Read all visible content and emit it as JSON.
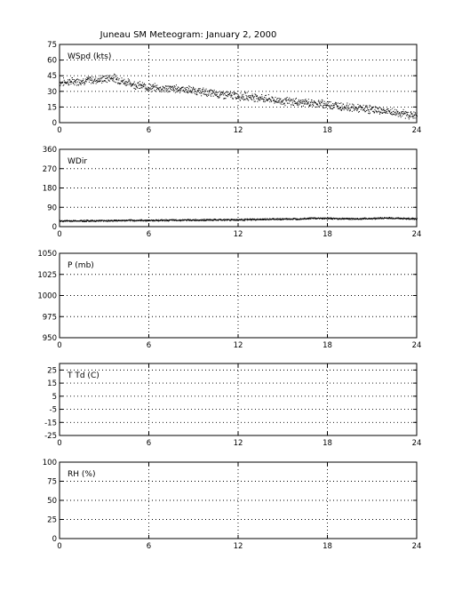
{
  "title": "Juneau SM Meteogram:    January  2, 2000",
  "chart_data": [
    {
      "type": "scatter",
      "label": "WSpd (kts)",
      "x_ticks": [
        "0",
        "6",
        "12",
        "18",
        "24"
      ],
      "xlim": [
        0,
        24
      ],
      "y_ticks": [
        "0",
        "15",
        "30",
        "45",
        "60",
        "75"
      ],
      "ylim": [
        0,
        75
      ],
      "grid": true,
      "series": [
        {
          "x": [
            0,
            1,
            2,
            3,
            3.5,
            4,
            5,
            6,
            7,
            8,
            9,
            10,
            11,
            12,
            13,
            14,
            15,
            16,
            17,
            18,
            19,
            20,
            21,
            22,
            23,
            24
          ],
          "y": [
            39,
            40,
            41,
            42,
            44,
            41,
            37,
            34,
            33,
            33,
            31,
            29,
            27,
            26,
            25,
            23,
            21,
            20,
            19,
            18,
            16,
            14,
            13,
            11,
            9,
            7
          ],
          "spread": 6
        }
      ]
    },
    {
      "type": "scatter",
      "label": "WDir",
      "x_ticks": [
        "0",
        "6",
        "12",
        "18",
        "24"
      ],
      "xlim": [
        0,
        24
      ],
      "y_ticks": [
        "0",
        "90",
        "180",
        "270",
        "360"
      ],
      "ylim": [
        0,
        360
      ],
      "grid": true,
      "series": [
        {
          "x": [
            0,
            2,
            4,
            6,
            8,
            10,
            12,
            14,
            16,
            17,
            18,
            20,
            22,
            23,
            24
          ],
          "y": [
            28,
            29,
            30,
            31,
            32,
            33,
            34,
            36,
            38,
            41,
            40,
            38,
            42,
            40,
            38
          ],
          "spread": 6
        }
      ]
    },
    {
      "type": "scatter",
      "label": "P (mb)",
      "x_ticks": [
        "0",
        "6",
        "12",
        "18",
        "24"
      ],
      "xlim": [
        0,
        24
      ],
      "y_ticks": [
        "950",
        "975",
        "1000",
        "1025",
        "1050"
      ],
      "ylim": [
        950,
        1050
      ],
      "grid": true,
      "series": []
    },
    {
      "type": "scatter",
      "label": "T Td (C)",
      "x_ticks": [
        "0",
        "6",
        "12",
        "18",
        "24"
      ],
      "xlim": [
        0,
        24
      ],
      "y_ticks": [
        "-25",
        "-15",
        "-5",
        "5",
        "15",
        "25"
      ],
      "ylim": [
        -25,
        30
      ],
      "grid": true,
      "series": []
    },
    {
      "type": "scatter",
      "label": "RH (%)",
      "x_ticks": [
        "0",
        "6",
        "12",
        "18",
        "24"
      ],
      "xlim": [
        0,
        24
      ],
      "y_ticks": [
        "0",
        "25",
        "50",
        "75",
        "100"
      ],
      "ylim": [
        0,
        100
      ],
      "grid": true,
      "series": []
    }
  ]
}
